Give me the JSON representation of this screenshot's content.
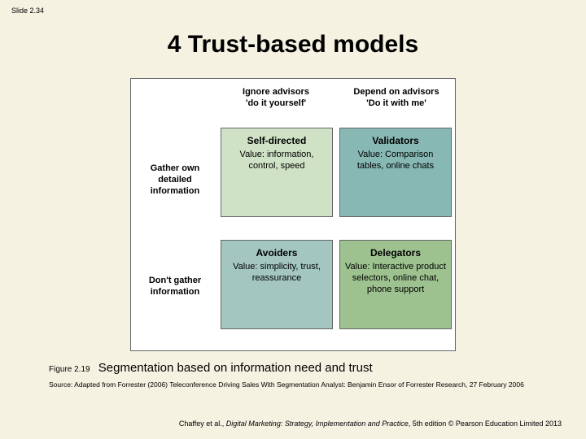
{
  "slide_number": "Slide 2.34",
  "title": "4 Trust-based models",
  "matrix": {
    "frame_bg": "#ffffff",
    "frame_border": "#666666",
    "col_headers": [
      {
        "line1": "Ignore advisors",
        "line2": "'do it yourself'"
      },
      {
        "line1": "Depend on advisors",
        "line2": "'Do it with me'"
      }
    ],
    "row_headers": [
      "Gather own detailed information",
      "Don't gather information"
    ],
    "cells": [
      {
        "pos": "tl",
        "name": "Self-directed",
        "desc": "Value: information, control, speed",
        "bg": "#cfe2c6"
      },
      {
        "pos": "tr",
        "name": "Validators",
        "desc": "Value: Comparison tables, online chats",
        "bg": "#87b8b4"
      },
      {
        "pos": "bl",
        "name": "Avoiders",
        "desc": "Value: simplicity, trust, reassurance",
        "bg": "#a3c6c0"
      },
      {
        "pos": "br",
        "name": "Delegators",
        "desc": "Value: Interactive product selectors, online chat, phone support",
        "bg": "#9dc28f"
      }
    ]
  },
  "figure": {
    "number": "Figure 2.19",
    "caption": "Segmentation based on information need and trust"
  },
  "source": "Source: Adapted from Forrester (2006) Teleconference Driving Sales With Segmentation Analyst: Benjamin Ensor of Forrester Research, 27 February 2006",
  "footer": {
    "authors": "Chaffey et al., ",
    "book": "Digital Marketing: Strategy, Implementation and Practice",
    "edition": ", 5th edition © Pearson Education Limited 2013"
  },
  "colors": {
    "page_bg": "#f5f2e2",
    "text": "#000000"
  }
}
